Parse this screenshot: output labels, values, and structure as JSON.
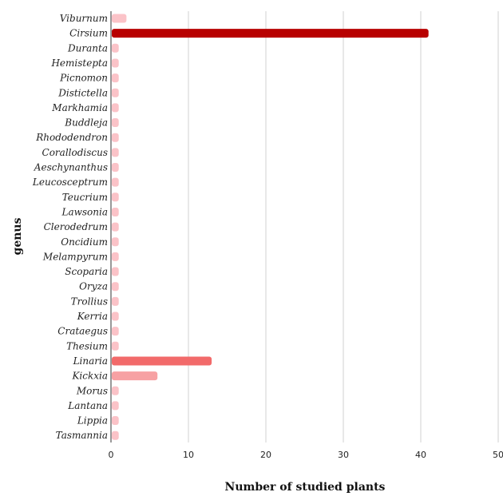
{
  "chart_data": {
    "type": "bar",
    "orientation": "horizontal",
    "categories": [
      "Viburnum",
      "Cirsium",
      "Duranta",
      "Hemistepta",
      "Picnomon",
      "Distictella",
      "Markhamia",
      "Buddleja",
      "Rhododendron",
      "Corallodiscus",
      "Aeschynanthus",
      "Leucosceptrum",
      "Teucrium",
      "Lawsonia",
      "Clerodedrum",
      "Oncidium",
      "Melampyrum",
      "Scoparia",
      "Oryza",
      "Trollius",
      "Kerria",
      "Crataegus",
      "Thesium",
      "Linaria",
      "Kickxia",
      "Morus",
      "Lantana",
      "Lippia",
      "Tasmannia"
    ],
    "values": [
      2,
      41,
      1,
      1,
      1,
      1,
      1,
      1,
      1,
      1,
      1,
      1,
      1,
      1,
      1,
      1,
      1,
      1,
      1,
      1,
      1,
      1,
      1,
      13,
      6,
      1,
      1,
      1,
      1
    ],
    "bar_colors": [
      "#fbc3c8",
      "#b80000",
      "#fbc3c8",
      "#fbc3c8",
      "#fbc3c8",
      "#fbc3c8",
      "#fbc3c8",
      "#fbc3c8",
      "#fbc3c8",
      "#fbc3c8",
      "#fbc3c8",
      "#fbc3c8",
      "#fbc3c8",
      "#fbc3c8",
      "#fbc3c8",
      "#fbc3c8",
      "#fbc3c8",
      "#fbc3c8",
      "#fbc3c8",
      "#fbc3c8",
      "#fbc3c8",
      "#fbc3c8",
      "#fbc3c8",
      "#f26a6a",
      "#f7a1a3",
      "#fbc3c8",
      "#fbc3c8",
      "#fbc3c8",
      "#fbc3c8"
    ],
    "xlabel": "Number of studied plants",
    "ylabel": "genus",
    "xlim": [
      0,
      50
    ],
    "xticks": [
      0,
      10,
      20,
      30,
      40,
      50
    ],
    "xtick_labels": [
      "0",
      "10",
      "20",
      "30",
      "40",
      "50"
    ],
    "grid": "vertical",
    "grid_color": "#d0d0d0",
    "axis_color": "#333333"
  }
}
